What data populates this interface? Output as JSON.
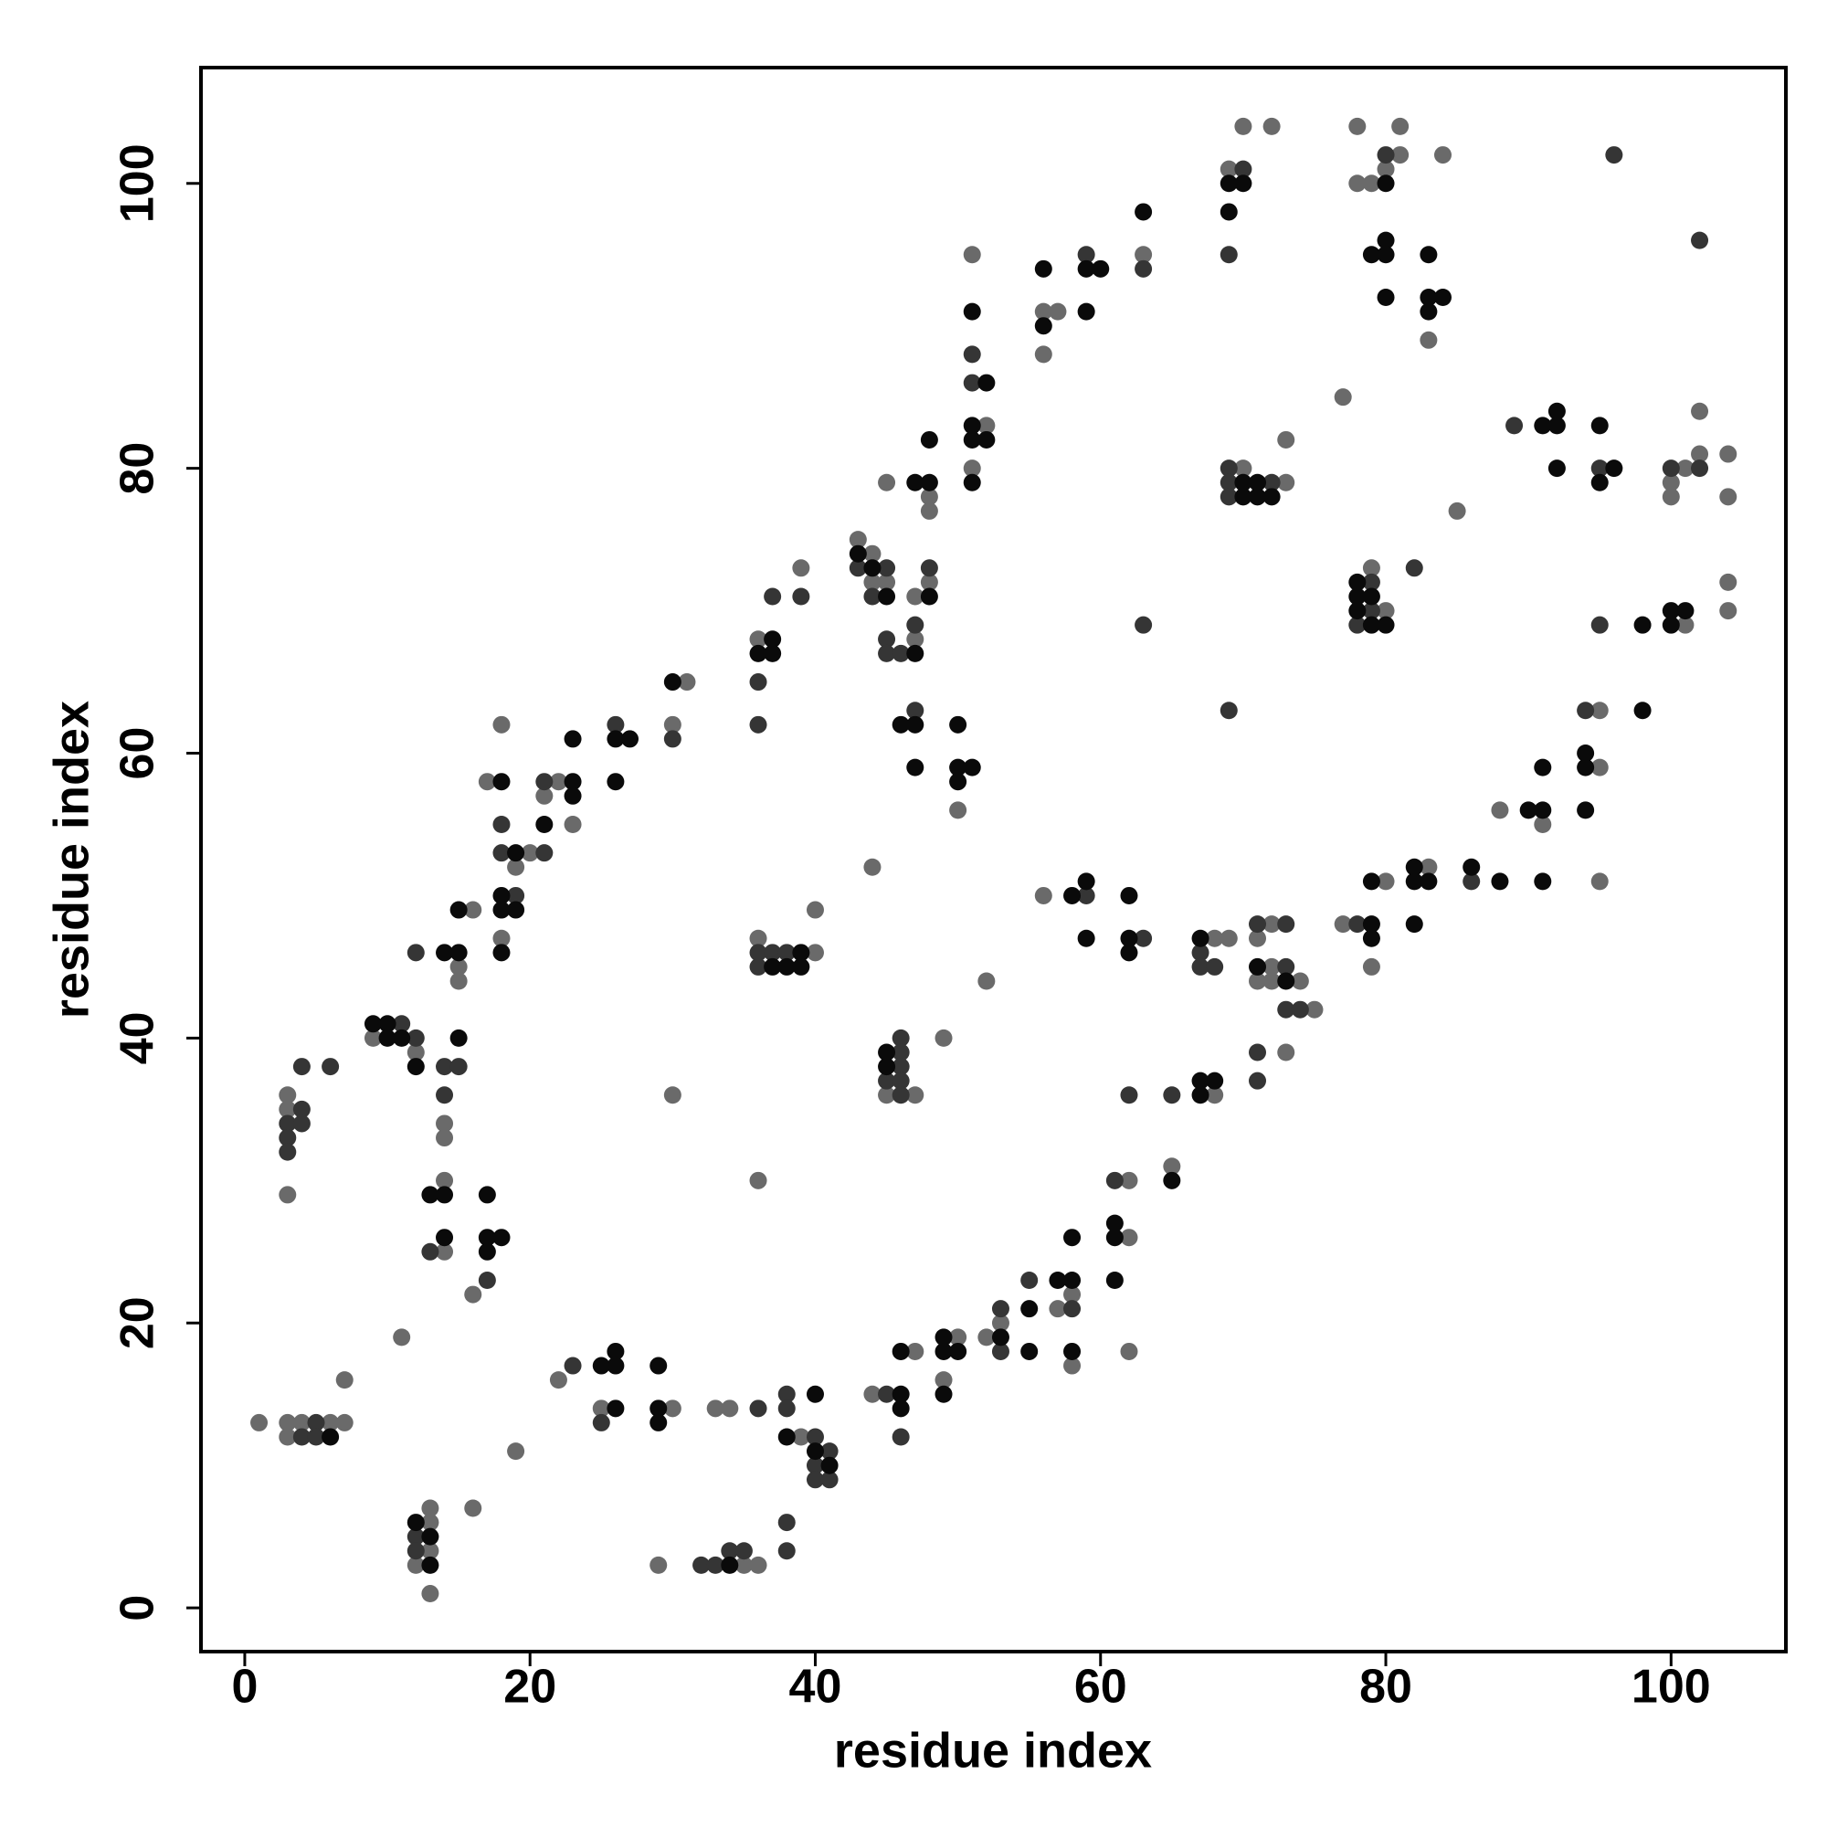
{
  "chart_data": {
    "type": "scatter",
    "xlabel": "residue index",
    "ylabel": "residue index",
    "xlim": [
      -3.07,
      108.05
    ],
    "ylim": [
      -3.07,
      108.13
    ],
    "xticks": [
      0,
      20,
      40,
      60,
      80,
      100
    ],
    "yticks": [
      0,
      20,
      40,
      60,
      80,
      100
    ],
    "series": [
      {
        "color": "#6a6a6a",
        "x": [
          1,
          3,
          3,
          4,
          6,
          7,
          7,
          3,
          3,
          3,
          9,
          12,
          11,
          12,
          13,
          13,
          13,
          13,
          14,
          14,
          14,
          14,
          15,
          15,
          16,
          16,
          16,
          17,
          18,
          18,
          19,
          19,
          20,
          21,
          22,
          22,
          23,
          25,
          30,
          29,
          30,
          31,
          30,
          33,
          34,
          35,
          36,
          36,
          36,
          39,
          40,
          40,
          36,
          39,
          43,
          44,
          44,
          45,
          45,
          44,
          47,
          47,
          48,
          48,
          48,
          45,
          47,
          49,
          44,
          47,
          50,
          49,
          50,
          51,
          52,
          51,
          52,
          52,
          53,
          56,
          57,
          56,
          56,
          57,
          58,
          58,
          62,
          62,
          62,
          63,
          65,
          68,
          68,
          69,
          70,
          72,
          70,
          73,
          73,
          69,
          71,
          71,
          72,
          72,
          72,
          74,
          75,
          73,
          77,
          77,
          79,
          80,
          78,
          78,
          79,
          80,
          81,
          81,
          84,
          83,
          85,
          79,
          80,
          83,
          88,
          91,
          95,
          95,
          95,
          100,
          100,
          101,
          101,
          102,
          102,
          104,
          104,
          104,
          104
        ],
        "values": [
          13,
          13,
          12,
          13,
          13,
          13,
          16,
          36,
          35,
          29,
          40,
          39,
          19,
          3,
          7,
          6,
          4,
          1,
          30,
          25,
          33,
          34,
          45,
          44,
          49,
          22,
          7,
          58,
          62,
          47,
          52,
          11,
          53,
          57,
          58,
          16,
          55,
          14,
          14,
          3,
          62,
          65,
          36,
          14,
          14,
          3,
          3,
          68,
          47,
          73,
          46,
          49,
          30,
          12,
          75,
          74,
          72,
          72,
          79,
          52,
          68,
          71,
          72,
          78,
          77,
          36,
          36,
          40,
          15,
          18,
          19,
          16,
          56,
          95,
          83,
          80,
          44,
          19,
          20,
          91,
          91,
          88,
          50,
          21,
          22,
          17,
          30,
          26,
          18,
          95,
          31,
          47,
          36,
          101,
          104,
          104,
          80,
          79,
          82,
          47,
          47,
          44,
          48,
          45,
          44,
          44,
          42,
          39,
          85,
          48,
          45,
          51,
          104,
          100,
          100,
          101,
          102,
          104,
          102,
          89,
          77,
          73,
          70,
          52,
          56,
          55,
          63,
          59,
          51,
          79,
          78,
          69,
          80,
          84,
          81,
          81,
          78,
          72,
          70
        ]
      },
      {
        "color": "#353535",
        "x": [
          4,
          5,
          5,
          3,
          3,
          3,
          4,
          4,
          4,
          6,
          11,
          12,
          12,
          12,
          12,
          13,
          14,
          14,
          15,
          17,
          18,
          18,
          19,
          21,
          21,
          23,
          25,
          26,
          30,
          32,
          33,
          34,
          35,
          36,
          36,
          36,
          36,
          36,
          37,
          37,
          38,
          39,
          38,
          38,
          38,
          38,
          40,
          40,
          40,
          41,
          41,
          43,
          44,
          45,
          45,
          45,
          46,
          47,
          48,
          47,
          45,
          46,
          46,
          46,
          46,
          46,
          45,
          46,
          51,
          51,
          53,
          53,
          55,
          58,
          59,
          59,
          61,
          62,
          63,
          63,
          63,
          65,
          67,
          67,
          68,
          70,
          69,
          69,
          69,
          69,
          69,
          72,
          71,
          73,
          73,
          73,
          74,
          71,
          71,
          78,
          80,
          78,
          79,
          79,
          82,
          86,
          89,
          94,
          95,
          95,
          96,
          100,
          102,
          102
        ],
        "values": [
          12,
          13,
          12,
          34,
          33,
          32,
          38,
          35,
          34,
          38,
          41,
          40,
          46,
          5,
          4,
          25,
          36,
          38,
          38,
          23,
          55,
          53,
          50,
          53,
          58,
          17,
          13,
          62,
          61,
          3,
          3,
          4,
          4,
          14,
          65,
          62,
          46,
          45,
          46,
          71,
          46,
          71,
          15,
          14,
          6,
          4,
          12,
          10,
          9,
          11,
          9,
          73,
          71,
          73,
          68,
          67,
          67,
          69,
          73,
          63,
          37,
          40,
          39,
          38,
          37,
          36,
          15,
          12,
          88,
          86,
          21,
          18,
          23,
          21,
          50,
          95,
          30,
          36,
          47,
          94,
          69,
          36,
          46,
          45,
          45,
          101,
          95,
          63,
          80,
          79,
          78,
          79,
          48,
          48,
          45,
          42,
          42,
          39,
          37,
          48,
          102,
          69,
          72,
          70,
          73,
          51,
          83,
          63,
          80,
          69,
          102,
          80,
          96,
          80
        ]
      },
      {
        "color": "#0a0a0a",
        "x": [
          6,
          9,
          10,
          10,
          11,
          12,
          12,
          13,
          13,
          13,
          14,
          14,
          15,
          14,
          15,
          15,
          17,
          17,
          17,
          18,
          18,
          18,
          18,
          18,
          19,
          19,
          21,
          23,
          23,
          23,
          25,
          26,
          26,
          26,
          26,
          26,
          27,
          29,
          29,
          29,
          30,
          34,
          36,
          37,
          37,
          37,
          38,
          39,
          39,
          38,
          40,
          40,
          41,
          43,
          44,
          45,
          47,
          48,
          47,
          48,
          48,
          46,
          47,
          47,
          45,
          45,
          46,
          46,
          46,
          49,
          49,
          50,
          49,
          50,
          50,
          50,
          51,
          51,
          51,
          51,
          52,
          51,
          52,
          53,
          55,
          55,
          56,
          56,
          57,
          58,
          58,
          58,
          58,
          59,
          59,
          59,
          59,
          60,
          61,
          61,
          61,
          62,
          62,
          62,
          63,
          65,
          67,
          67,
          67,
          68,
          69,
          70,
          69,
          70,
          70,
          71,
          71,
          72,
          71,
          73,
          79,
          79,
          79,
          80,
          79,
          80,
          80,
          80,
          83,
          83,
          83,
          84,
          78,
          78,
          78,
          79,
          79,
          80,
          82,
          82,
          82,
          83,
          86,
          88,
          90,
          91,
          91,
          91,
          91,
          92,
          92,
          92,
          94,
          94,
          94,
          95,
          95,
          96,
          98,
          98,
          100,
          100,
          101
        ],
        "values": [
          12,
          41,
          41,
          40,
          40,
          38,
          6,
          5,
          3,
          29,
          29,
          26,
          40,
          46,
          46,
          49,
          29,
          26,
          25,
          26,
          58,
          50,
          49,
          46,
          53,
          49,
          55,
          58,
          57,
          61,
          17,
          18,
          17,
          14,
          61,
          58,
          61,
          17,
          14,
          13,
          65,
          3,
          67,
          45,
          68,
          67,
          45,
          46,
          45,
          12,
          15,
          11,
          10,
          74,
          73,
          71,
          67,
          71,
          79,
          79,
          82,
          62,
          62,
          59,
          39,
          38,
          15,
          14,
          18,
          19,
          18,
          18,
          15,
          62,
          59,
          58,
          59,
          91,
          83,
          82,
          82,
          79,
          86,
          19,
          21,
          18,
          90,
          94,
          23,
          23,
          18,
          26,
          50,
          51,
          47,
          94,
          91,
          94,
          27,
          26,
          23,
          50,
          47,
          46,
          98,
          30,
          47,
          37,
          36,
          37,
          100,
          100,
          98,
          79,
          78,
          79,
          78,
          78,
          45,
          44,
          48,
          47,
          51,
          100,
          95,
          96,
          95,
          92,
          95,
          92,
          91,
          92,
          72,
          71,
          70,
          71,
          69,
          69,
          52,
          51,
          48,
          51,
          52,
          51,
          56,
          56,
          59,
          51,
          83,
          84,
          83,
          80,
          60,
          59,
          56,
          83,
          79,
          80,
          69,
          63,
          70,
          69,
          70
        ]
      }
    ]
  }
}
